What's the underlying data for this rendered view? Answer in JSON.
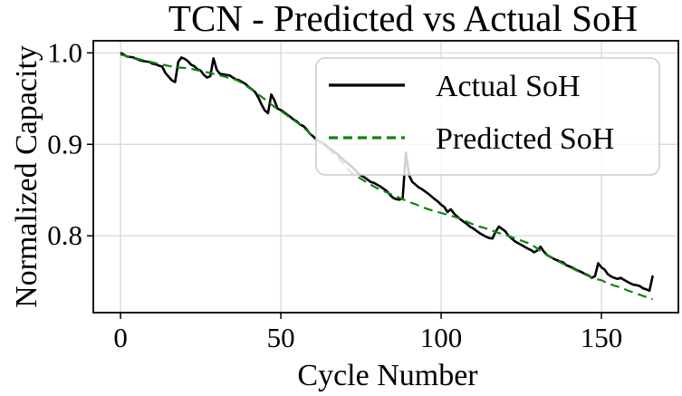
{
  "chart_data": {
    "type": "line",
    "title": "TCN - Predicted vs Actual SoH",
    "xlabel": "Cycle Number",
    "ylabel": "Normalized Capacity",
    "xlim": [
      -8.5,
      174
    ],
    "ylim": [
      0.716,
      1.0132
    ],
    "xticks": [
      0,
      50,
      100,
      150
    ],
    "xtick_labels": [
      "0",
      "50",
      "100",
      "150"
    ],
    "yticks": [
      0.8,
      0.9,
      1.0
    ],
    "ytick_labels": [
      "0.8",
      "0.9",
      "1.0"
    ],
    "grid": true,
    "legend_position": "upper right",
    "style": {
      "background": "#ffffff",
      "grid_color": "#d4d4d4",
      "actual_color": "#000000",
      "predicted_color": "#108410",
      "legend_border": "#cccccc"
    },
    "series": [
      {
        "name": "Actual SoH",
        "color": "#000000",
        "style": "solid",
        "width": 2.6,
        "points": [
          [
            0,
            1.0
          ],
          [
            1,
            0.998
          ],
          [
            2,
            0.996
          ],
          [
            3,
            0.9955
          ],
          [
            4,
            0.995
          ],
          [
            5,
            0.9935
          ],
          [
            6,
            0.992
          ],
          [
            7,
            0.991
          ],
          [
            8,
            0.9905
          ],
          [
            9,
            0.99
          ],
          [
            10,
            0.988
          ],
          [
            11,
            0.9875
          ],
          [
            12,
            0.986
          ],
          [
            13,
            0.985
          ],
          [
            14,
            0.978
          ],
          [
            15,
            0.974
          ],
          [
            16,
            0.97
          ],
          [
            17,
            0.968
          ],
          [
            18,
            0.99
          ],
          [
            19,
            0.995
          ],
          [
            20,
            0.9935
          ],
          [
            21,
            0.991
          ],
          [
            22,
            0.987
          ],
          [
            23,
            0.9855
          ],
          [
            24,
            0.982
          ],
          [
            25,
            0.9805
          ],
          [
            26,
            0.976
          ],
          [
            27,
            0.973
          ],
          [
            28,
            0.9745
          ],
          [
            29,
            0.994
          ],
          [
            30,
            0.9815
          ],
          [
            31,
            0.977
          ],
          [
            32,
            0.9765
          ],
          [
            33,
            0.976
          ],
          [
            34,
            0.9755
          ],
          [
            35,
            0.973
          ],
          [
            36,
            0.971
          ],
          [
            37,
            0.97
          ],
          [
            38,
            0.968
          ],
          [
            39,
            0.966
          ],
          [
            40,
            0.9625
          ],
          [
            41,
            0.96
          ],
          [
            42,
            0.957
          ],
          [
            43,
            0.951
          ],
          [
            44,
            0.9435
          ],
          [
            45,
            0.937
          ],
          [
            46,
            0.934
          ],
          [
            47,
            0.9545
          ],
          [
            48,
            0.948
          ],
          [
            49,
            0.939
          ],
          [
            50,
            0.9375
          ],
          [
            51,
            0.935
          ],
          [
            52,
            0.9325
          ],
          [
            53,
            0.93
          ],
          [
            54,
            0.927
          ],
          [
            55,
            0.925
          ],
          [
            56,
            0.9215
          ],
          [
            57,
            0.92
          ],
          [
            58,
            0.9165
          ],
          [
            59,
            0.912
          ],
          [
            60,
            0.909
          ],
          [
            61,
            0.9055
          ],
          [
            62,
            0.9035
          ],
          [
            63,
            0.9015
          ],
          [
            64,
            0.899
          ],
          [
            65,
            0.896
          ],
          [
            66,
            0.8935
          ],
          [
            67,
            0.891
          ],
          [
            68,
            0.888
          ],
          [
            69,
            0.885
          ],
          [
            70,
            0.8815
          ],
          [
            71,
            0.879
          ],
          [
            72,
            0.876
          ],
          [
            73,
            0.8725
          ],
          [
            74,
            0.869
          ],
          [
            75,
            0.866
          ],
          [
            76,
            0.864
          ],
          [
            77,
            0.8615
          ],
          [
            78,
            0.859
          ],
          [
            79,
            0.858
          ],
          [
            80,
            0.856
          ],
          [
            81,
            0.854
          ],
          [
            82,
            0.8515
          ],
          [
            83,
            0.849
          ],
          [
            84,
            0.845
          ],
          [
            85,
            0.8415
          ],
          [
            86,
            0.84
          ],
          [
            87,
            0.8395
          ],
          [
            88,
            0.841
          ],
          [
            89,
            0.891
          ],
          [
            90,
            0.866
          ],
          [
            91,
            0.859
          ],
          [
            92,
            0.856
          ],
          [
            93,
            0.853
          ],
          [
            94,
            0.851
          ],
          [
            95,
            0.8485
          ],
          [
            96,
            0.846
          ],
          [
            97,
            0.843
          ],
          [
            98,
            0.84
          ],
          [
            99,
            0.8375
          ],
          [
            100,
            0.834
          ],
          [
            101,
            0.8315
          ],
          [
            102,
            0.826
          ],
          [
            103,
            0.829
          ],
          [
            104,
            0.8245
          ],
          [
            105,
            0.821
          ],
          [
            106,
            0.818
          ],
          [
            107,
            0.8155
          ],
          [
            108,
            0.813
          ],
          [
            109,
            0.81
          ],
          [
            110,
            0.808
          ],
          [
            111,
            0.8055
          ],
          [
            112,
            0.803
          ],
          [
            113,
            0.801
          ],
          [
            114,
            0.799
          ],
          [
            115,
            0.7975
          ],
          [
            116,
            0.797
          ],
          [
            117,
            0.8045
          ],
          [
            118,
            0.81
          ],
          [
            119,
            0.8075
          ],
          [
            120,
            0.805
          ],
          [
            121,
            0.8
          ],
          [
            122,
            0.797
          ],
          [
            123,
            0.794
          ],
          [
            124,
            0.792
          ],
          [
            125,
            0.79
          ],
          [
            126,
            0.788
          ],
          [
            127,
            0.786
          ],
          [
            128,
            0.7845
          ],
          [
            129,
            0.782
          ],
          [
            130,
            0.784
          ],
          [
            131,
            0.788
          ],
          [
            132,
            0.783
          ],
          [
            133,
            0.779
          ],
          [
            134,
            0.777
          ],
          [
            135,
            0.775
          ],
          [
            136,
            0.7735
          ],
          [
            137,
            0.772
          ],
          [
            138,
            0.771
          ],
          [
            139,
            0.768
          ],
          [
            140,
            0.7665
          ],
          [
            141,
            0.765
          ],
          [
            142,
            0.763
          ],
          [
            143,
            0.7615
          ],
          [
            144,
            0.76
          ],
          [
            145,
            0.758
          ],
          [
            146,
            0.7565
          ],
          [
            147,
            0.754
          ],
          [
            148,
            0.756
          ],
          [
            149,
            0.77
          ],
          [
            150,
            0.7655
          ],
          [
            151,
            0.763
          ],
          [
            152,
            0.758
          ],
          [
            153,
            0.7555
          ],
          [
            154,
            0.754
          ],
          [
            155,
            0.753
          ],
          [
            156,
            0.754
          ],
          [
            157,
            0.752
          ],
          [
            158,
            0.75
          ],
          [
            159,
            0.748
          ],
          [
            160,
            0.7465
          ],
          [
            161,
            0.746
          ],
          [
            162,
            0.745
          ],
          [
            163,
            0.7425
          ],
          [
            164,
            0.7415
          ],
          [
            165,
            0.74
          ],
          [
            166,
            0.7565
          ]
        ]
      },
      {
        "name": "Predicted SoH",
        "color": "#108410",
        "style": "dashed",
        "width": 2.2,
        "points": [
          [
            0,
            0.998
          ],
          [
            2,
            0.9965
          ],
          [
            4,
            0.995
          ],
          [
            6,
            0.993
          ],
          [
            8,
            0.9915
          ],
          [
            10,
            0.9895
          ],
          [
            12,
            0.988
          ],
          [
            14,
            0.9865
          ],
          [
            16,
            0.985
          ],
          [
            18,
            0.984
          ],
          [
            20,
            0.9835
          ],
          [
            22,
            0.9825
          ],
          [
            24,
            0.981
          ],
          [
            26,
            0.9795
          ],
          [
            28,
            0.978
          ],
          [
            30,
            0.976
          ],
          [
            32,
            0.9745
          ],
          [
            34,
            0.9725
          ],
          [
            36,
            0.9705
          ],
          [
            38,
            0.967
          ],
          [
            40,
            0.962
          ],
          [
            42,
            0.957
          ],
          [
            44,
            0.952
          ],
          [
            46,
            0.9465
          ],
          [
            48,
            0.941
          ],
          [
            50,
            0.9365
          ],
          [
            52,
            0.9315
          ],
          [
            54,
            0.9265
          ],
          [
            56,
            0.9215
          ],
          [
            58,
            0.9155
          ],
          [
            60,
            0.909
          ],
          [
            62,
            0.9035
          ],
          [
            64,
            0.898
          ],
          [
            66,
            0.8915
          ],
          [
            68,
            0.885
          ],
          [
            70,
            0.8765
          ],
          [
            72,
            0.869
          ],
          [
            74,
            0.8645
          ],
          [
            76,
            0.86
          ],
          [
            78,
            0.856
          ],
          [
            80,
            0.852
          ],
          [
            82,
            0.849
          ],
          [
            84,
            0.846
          ],
          [
            86,
            0.843
          ],
          [
            88,
            0.84
          ],
          [
            90,
            0.837
          ],
          [
            92,
            0.8345
          ],
          [
            94,
            0.8315
          ],
          [
            96,
            0.829
          ],
          [
            98,
            0.827
          ],
          [
            100,
            0.825
          ],
          [
            102,
            0.823
          ],
          [
            104,
            0.821
          ],
          [
            106,
            0.8185
          ],
          [
            108,
            0.8155
          ],
          [
            110,
            0.8125
          ],
          [
            112,
            0.81
          ],
          [
            114,
            0.808
          ],
          [
            116,
            0.8055
          ],
          [
            118,
            0.803
          ],
          [
            120,
            0.801
          ],
          [
            122,
            0.7985
          ],
          [
            124,
            0.796
          ],
          [
            126,
            0.7935
          ],
          [
            128,
            0.791
          ],
          [
            130,
            0.786
          ],
          [
            132,
            0.781
          ],
          [
            134,
            0.777
          ],
          [
            136,
            0.773
          ],
          [
            138,
            0.7695
          ],
          [
            140,
            0.766
          ],
          [
            142,
            0.7625
          ],
          [
            144,
            0.759
          ],
          [
            146,
            0.756
          ],
          [
            148,
            0.753
          ],
          [
            150,
            0.7515
          ],
          [
            152,
            0.748
          ],
          [
            154,
            0.7455
          ],
          [
            156,
            0.7435
          ],
          [
            158,
            0.7405
          ],
          [
            160,
            0.738
          ],
          [
            162,
            0.7355
          ],
          [
            164,
            0.733
          ],
          [
            166,
            0.7305
          ]
        ]
      }
    ]
  }
}
